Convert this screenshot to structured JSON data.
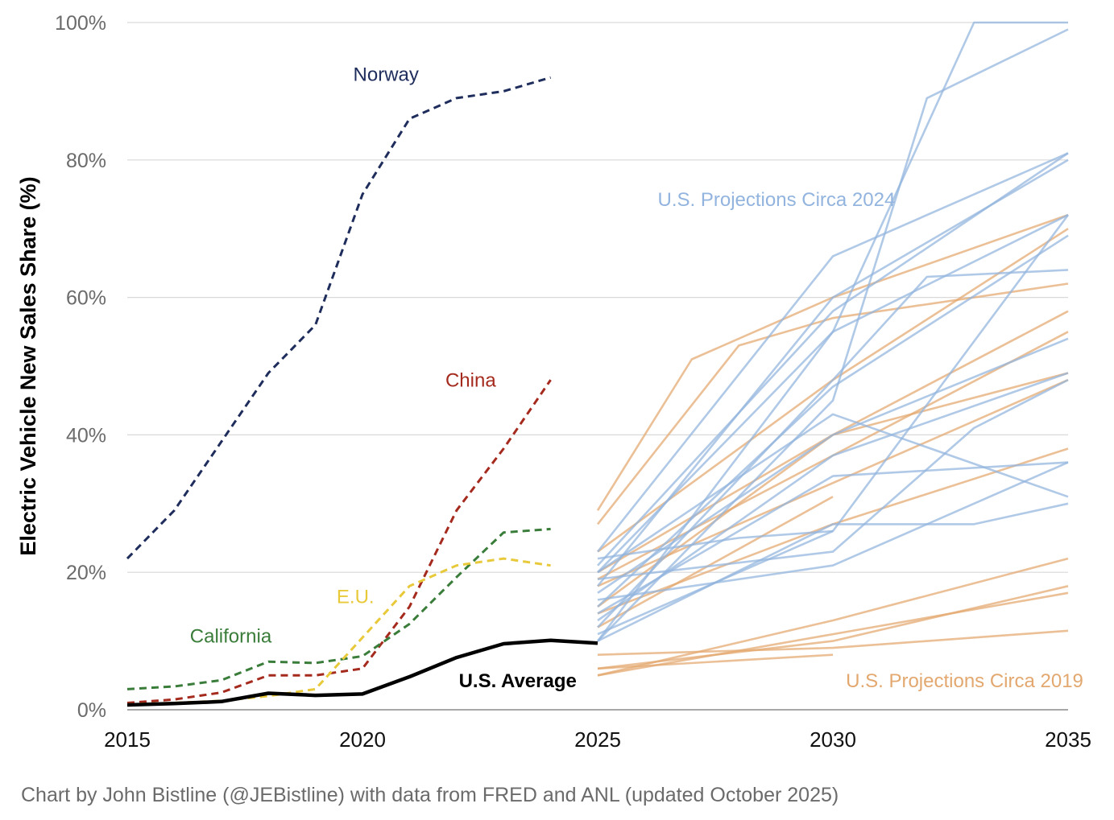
{
  "chart_data": {
    "type": "line",
    "title": "",
    "ylabel": "Electric Vehicle New Sales Share (%)",
    "xlabel": "",
    "xlim": [
      2015,
      2035
    ],
    "ylim": [
      0,
      100
    ],
    "x_ticks": [
      "2015",
      "2020",
      "2025",
      "2030",
      "2035"
    ],
    "y_ticks": [
      "0%",
      "20%",
      "40%",
      "60%",
      "80%",
      "100%"
    ],
    "grid": "horizontal",
    "source": "Chart by John Bistline (@JEBistline) with data from FRED and ANL (updated October 2025)",
    "colors": {
      "norway": "#1f2d5c",
      "china": "#a52a1e",
      "california": "#3a7d3a",
      "eu": "#e8c93a",
      "us_average": "#000000",
      "proj_2024": "#92b4de",
      "proj_2019": "#e3a86f"
    },
    "series": [
      {
        "name": "Norway",
        "key": "norway",
        "style": "dashed",
        "x": [
          2015,
          2016,
          2017,
          2018,
          2019,
          2020,
          2021,
          2022,
          2023,
          2024
        ],
        "y": [
          22,
          29,
          39,
          49,
          56,
          75,
          86,
          89,
          90,
          92
        ]
      },
      {
        "name": "China",
        "key": "china",
        "style": "dashed",
        "x": [
          2015,
          2016,
          2017,
          2018,
          2019,
          2020,
          2021,
          2022,
          2023,
          2024
        ],
        "y": [
          1,
          1.5,
          2.5,
          5,
          5,
          6,
          15,
          29,
          38,
          48
        ]
      },
      {
        "name": "California",
        "key": "california",
        "style": "dashed",
        "x": [
          2015,
          2016,
          2017,
          2018,
          2019,
          2020,
          2021,
          2022,
          2023,
          2024
        ],
        "y": [
          3,
          3.4,
          4.3,
          7,
          6.8,
          7.8,
          12.5,
          19.3,
          25.8,
          26.3
        ]
      },
      {
        "name": "E.U.",
        "key": "eu",
        "style": "dashed",
        "x": [
          2015,
          2016,
          2017,
          2018,
          2019,
          2020,
          2021,
          2022,
          2023,
          2024
        ],
        "y": [
          0.8,
          1,
          1.3,
          2,
          3,
          10.5,
          18,
          21,
          22,
          21
        ]
      },
      {
        "name": "U.S. Average",
        "key": "us_average",
        "style": "solid-bold",
        "x": [
          2015,
          2016,
          2017,
          2018,
          2019,
          2020,
          2021,
          2022,
          2023,
          2024,
          2025
        ],
        "y": [
          0.7,
          0.9,
          1.2,
          2.4,
          2.1,
          2.3,
          4.8,
          7.6,
          9.6,
          10.1,
          9.7
        ]
      }
    ],
    "projection_groups": [
      {
        "name": "U.S. Projections Circa 2024",
        "key": "proj_2024",
        "lines": [
          {
            "x": [
              2025,
              2030,
              2033,
              2035
            ],
            "y": [
              10,
              55,
              100,
              100
            ]
          },
          {
            "x": [
              2025,
              2030,
              2032,
              2035
            ],
            "y": [
              10,
              45,
              89,
              99
            ]
          },
          {
            "x": [
              2025,
              2030,
              2035
            ],
            "y": [
              23,
              66,
              81
            ]
          },
          {
            "x": [
              2025,
              2030,
              2035
            ],
            "y": [
              18,
              60,
              80
            ]
          },
          {
            "x": [
              2025,
              2030,
              2035
            ],
            "y": [
              20,
              55,
              72
            ]
          },
          {
            "x": [
              2025,
              2030,
              2035
            ],
            "y": [
              15,
              47,
              69
            ]
          },
          {
            "x": [
              2025,
              2030,
              2032,
              2035
            ],
            "y": [
              12,
              48,
              63,
              64
            ]
          },
          {
            "x": [
              2025,
              2030,
              2035
            ],
            "y": [
              17,
              40,
              54
            ]
          },
          {
            "x": [
              2025,
              2030,
              2035
            ],
            "y": [
              13,
              37,
              49
            ]
          },
          {
            "x": [
              2025,
              2030,
              2035
            ],
            "y": [
              20,
              43,
              31
            ]
          },
          {
            "x": [
              2025,
              2030,
              2035
            ],
            "y": [
              14,
              34,
              36
            ]
          },
          {
            "x": [
              2025,
              2030,
              2033,
              2035
            ],
            "y": [
              10,
              27,
              27,
              30
            ]
          },
          {
            "x": [
              2025,
              2030,
              2035
            ],
            "y": [
              16,
              21,
              36
            ]
          },
          {
            "x": [
              2025,
              2030,
              2033,
              2035
            ],
            "y": [
              19,
              23,
              41,
              48
            ]
          },
          {
            "x": [
              2025,
              2030,
              2035
            ],
            "y": [
              11,
              26,
              72
            ]
          },
          {
            "x": [
              2025,
              2030,
              2035
            ],
            "y": [
              21,
              58,
              81
            ]
          },
          {
            "x": [
              2025,
              2028,
              2030
            ],
            "y": [
              22,
              25,
              26
            ]
          }
        ]
      },
      {
        "name": "U.S. Projections Circa 2019",
        "key": "proj_2019",
        "lines": [
          {
            "x": [
              2025,
              2027,
              2030,
              2035
            ],
            "y": [
              29,
              51,
              60,
              72
            ]
          },
          {
            "x": [
              2025,
              2028,
              2030,
              2035
            ],
            "y": [
              27,
              53,
              57,
              62
            ]
          },
          {
            "x": [
              2025,
              2030,
              2035
            ],
            "y": [
              23,
              48,
              70
            ]
          },
          {
            "x": [
              2025,
              2030,
              2035
            ],
            "y": [
              20,
              40,
              58
            ]
          },
          {
            "x": [
              2025,
              2030,
              2035
            ],
            "y": [
              19,
              37,
              55
            ]
          },
          {
            "x": [
              2025,
              2030,
              2035
            ],
            "y": [
              15,
              40,
              49
            ]
          },
          {
            "x": [
              2025,
              2030,
              2035
            ],
            "y": [
              18,
              33,
              48
            ]
          },
          {
            "x": [
              2025,
              2030,
              2035
            ],
            "y": [
              14,
              27,
              38
            ]
          },
          {
            "x": [
              2025,
              2030
            ],
            "y": [
              12,
              31
            ]
          },
          {
            "x": [
              2025,
              2030,
              2035
            ],
            "y": [
              5,
              13,
              22
            ]
          },
          {
            "x": [
              2025,
              2030,
              2035
            ],
            "y": [
              6,
              10,
              18
            ]
          },
          {
            "x": [
              2025,
              2030,
              2035
            ],
            "y": [
              5,
              11,
              17
            ]
          },
          {
            "x": [
              2025,
              2030,
              2035
            ],
            "y": [
              8,
              9,
              11.5
            ]
          },
          {
            "x": [
              2025,
              2030
            ],
            "y": [
              6,
              8
            ]
          }
        ]
      }
    ],
    "annotations": [
      {
        "key": "norway",
        "text": "Norway",
        "x": 2020.5,
        "y": 91.5
      },
      {
        "key": "china",
        "text": "China",
        "x": 2022.3,
        "y": 47
      },
      {
        "key": "eu",
        "text": "E.U.",
        "x": 2019.85,
        "y": 15.5
      },
      {
        "key": "california",
        "text": "California",
        "x": 2017.2,
        "y": 9.8
      },
      {
        "key": "us_average",
        "text": "U.S. Average",
        "x": 2023.3,
        "y": 3.3
      },
      {
        "key": "proj_2024",
        "text": "U.S. Projections Circa 2024",
        "x": 2028.8,
        "y": 73.3
      },
      {
        "key": "proj_2019",
        "text": "U.S. Projections Circa 2019",
        "x": 2032.8,
        "y": 3.3
      }
    ]
  }
}
